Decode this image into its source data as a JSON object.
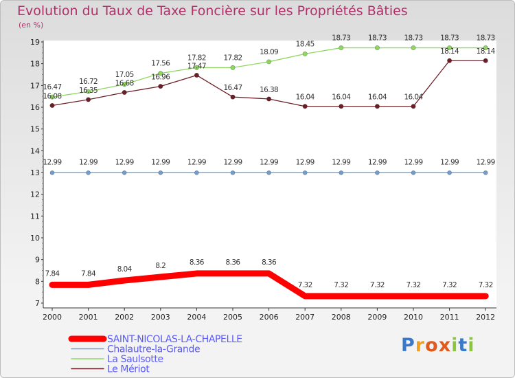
{
  "title": "Evolution du Taux de Taxe Foncière sur les Propriétés Bâties",
  "unit": "(en %)",
  "brand": "Proxiti",
  "chart_data": {
    "type": "line",
    "title": "Evolution du Taux de Taxe Foncière sur les Propriétés Bâties",
    "ylabel": "(en %)",
    "xlabel": "",
    "ylim": [
      7,
      19
    ],
    "yticks": [
      7,
      8,
      9,
      10,
      11,
      12,
      13,
      14,
      15,
      16,
      17,
      18,
      19
    ],
    "x": [
      "2000",
      "2001",
      "2002",
      "2003",
      "2004",
      "2005",
      "2006",
      "2007",
      "2008",
      "2009",
      "2010",
      "2011",
      "2012"
    ],
    "grid": false,
    "legend_position": "bottom-left",
    "series": [
      {
        "name": "SAINT-NICOLAS-LA-CHAPELLE",
        "color": "#ff0000",
        "values": [
          7.84,
          7.84,
          8.04,
          8.2,
          8.36,
          8.36,
          8.36,
          7.32,
          7.32,
          7.32,
          7.32,
          7.32,
          7.32
        ]
      },
      {
        "name": "Chalautre-la-Grande",
        "color": "#6e9fd0",
        "values": [
          12.99,
          12.99,
          12.99,
          12.99,
          12.99,
          12.99,
          12.99,
          12.99,
          12.99,
          12.99,
          12.99,
          12.99,
          12.99
        ]
      },
      {
        "name": "La Saulsotte",
        "color": "#8fd860",
        "values": [
          16.47,
          16.72,
          17.05,
          17.56,
          17.82,
          17.82,
          18.09,
          18.45,
          18.73,
          18.73,
          18.73,
          18.73,
          18.73
        ]
      },
      {
        "name": "Le Mériot",
        "color": "#6b1e26",
        "values": [
          16.08,
          16.35,
          16.68,
          16.96,
          17.47,
          16.47,
          16.38,
          16.04,
          16.04,
          16.04,
          16.04,
          18.14,
          18.14
        ]
      }
    ],
    "point_labels": [
      [
        "7.84",
        "7.84",
        "8.04",
        "8.2",
        "8.36",
        "8.36",
        "8.36",
        "7.32",
        "7.32",
        "7.32",
        "7.32",
        "7.32",
        "7.32"
      ],
      [
        "12.99",
        "12.99",
        "12.99",
        "12.99",
        "12.99",
        "12.99",
        "12.99",
        "12.99",
        "12.99",
        "12.99",
        "12.99",
        "12.99",
        "12.99"
      ],
      [
        "16.47",
        "16.72",
        "17.05",
        "17.56",
        "17.82",
        "17.82",
        "18.09",
        "18.45",
        "18.73",
        "18.73",
        "18.73",
        "18.73",
        "18.73"
      ],
      [
        "16.08",
        "16.35",
        "16.68",
        "16.96",
        "17.47",
        "16.47",
        "16.38",
        "16.04",
        "16.04",
        "16.04",
        "16.04",
        "18.14",
        "18.14"
      ]
    ]
  }
}
